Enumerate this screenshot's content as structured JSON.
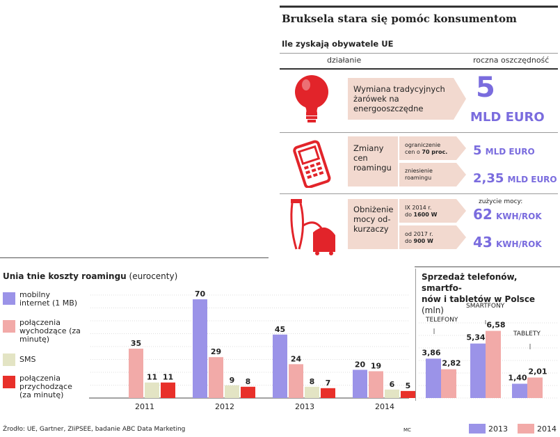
{
  "infographic": {
    "title": "Bruksela stara się pomóc konsumentom",
    "subtitle": "Ile zyskają obywatele UE",
    "col_action": "działanie",
    "col_saving": "roczna oszczędność",
    "rows": [
      {
        "action": "Wymiana tradycyjnych żarówek na energooszczędne",
        "saving_value": "5",
        "saving_unit": "MLD EURO",
        "icon": "light-bulb-icon"
      },
      {
        "action": "Zmiany cen roamingu",
        "icon": "mobile-phone-icon",
        "sub": [
          {
            "label_a": "ograniczenie",
            "label_b": "cen o ",
            "label_bold": "70 proc.",
            "value": "5",
            "unit": "MLD EURO"
          },
          {
            "label_a": "zniesienie",
            "label_b": "roamingu",
            "label_bold": "",
            "value": "2,35",
            "unit": "MLD EURO"
          }
        ]
      },
      {
        "action": "Obniżenie mocy od-kurzaczy",
        "icon": "vacuum-cleaner-icon",
        "power_header": "zużycie mocy:",
        "sub": [
          {
            "label_a": "IX  2014 r.",
            "label_b": "do ",
            "label_bold": "1600 W",
            "value": "62",
            "unit": "KWH/ROK"
          },
          {
            "label_a": "od 2017 r.",
            "label_b": "do ",
            "label_bold": "900 W",
            "value": "43",
            "unit": "KWH/ROK"
          }
        ]
      }
    ]
  },
  "roaming_title_bold": "Unia tnie koszty roamingu",
  "roaming_title_rest": " (eurocenty)",
  "sales_title_bold_1": "Sprzedaż  telefonów, smartfo-",
  "sales_title_bold_2": "nów i tabletów w Polsce",
  "sales_title_rest": " (mln)",
  "source": "Źrodło: UE, Gartner, ZIiPSEE, badanie ABC Data Marketing",
  "credit": "MC",
  "colors": {
    "purple": "#9b93e8",
    "pink": "#f2aaa8",
    "cream": "#e3e4c4",
    "red": "#e8302a"
  },
  "chart_data": [
    {
      "type": "bar",
      "categories": [
        "2011",
        "2012",
        "2013",
        "2014"
      ],
      "series": [
        {
          "name": "mobilny internet (1 MB)",
          "color": "#9b93e8",
          "values": [
            null,
            70,
            45,
            20
          ]
        },
        {
          "name": "połączenia wychodzące (za minutę)",
          "color": "#f2aaa8",
          "values": [
            35,
            29,
            24,
            19
          ]
        },
        {
          "name": "SMS",
          "color": "#e3e4c4",
          "values": [
            11,
            9,
            8,
            6
          ]
        },
        {
          "name": "połączenia przychodzące (za minutę)",
          "color": "#e8302a",
          "values": [
            11,
            8,
            7,
            5
          ]
        }
      ],
      "ylim": [
        0,
        75
      ]
    },
    {
      "type": "bar",
      "categories": [
        "TELEFONY",
        "SMARTFONY",
        "TABLETY"
      ],
      "series": [
        {
          "name": "2013",
          "color": "#9b93e8",
          "values": [
            3.86,
            5.34,
            1.4
          ],
          "labels": [
            "3,86",
            "5,34",
            "1,40"
          ]
        },
        {
          "name": "2014",
          "color": "#f2aaa8",
          "values": [
            2.82,
            6.58,
            2.01
          ],
          "labels": [
            "2,82",
            "6,58",
            "2,01"
          ]
        }
      ],
      "ylim": [
        0,
        7.5
      ]
    }
  ]
}
